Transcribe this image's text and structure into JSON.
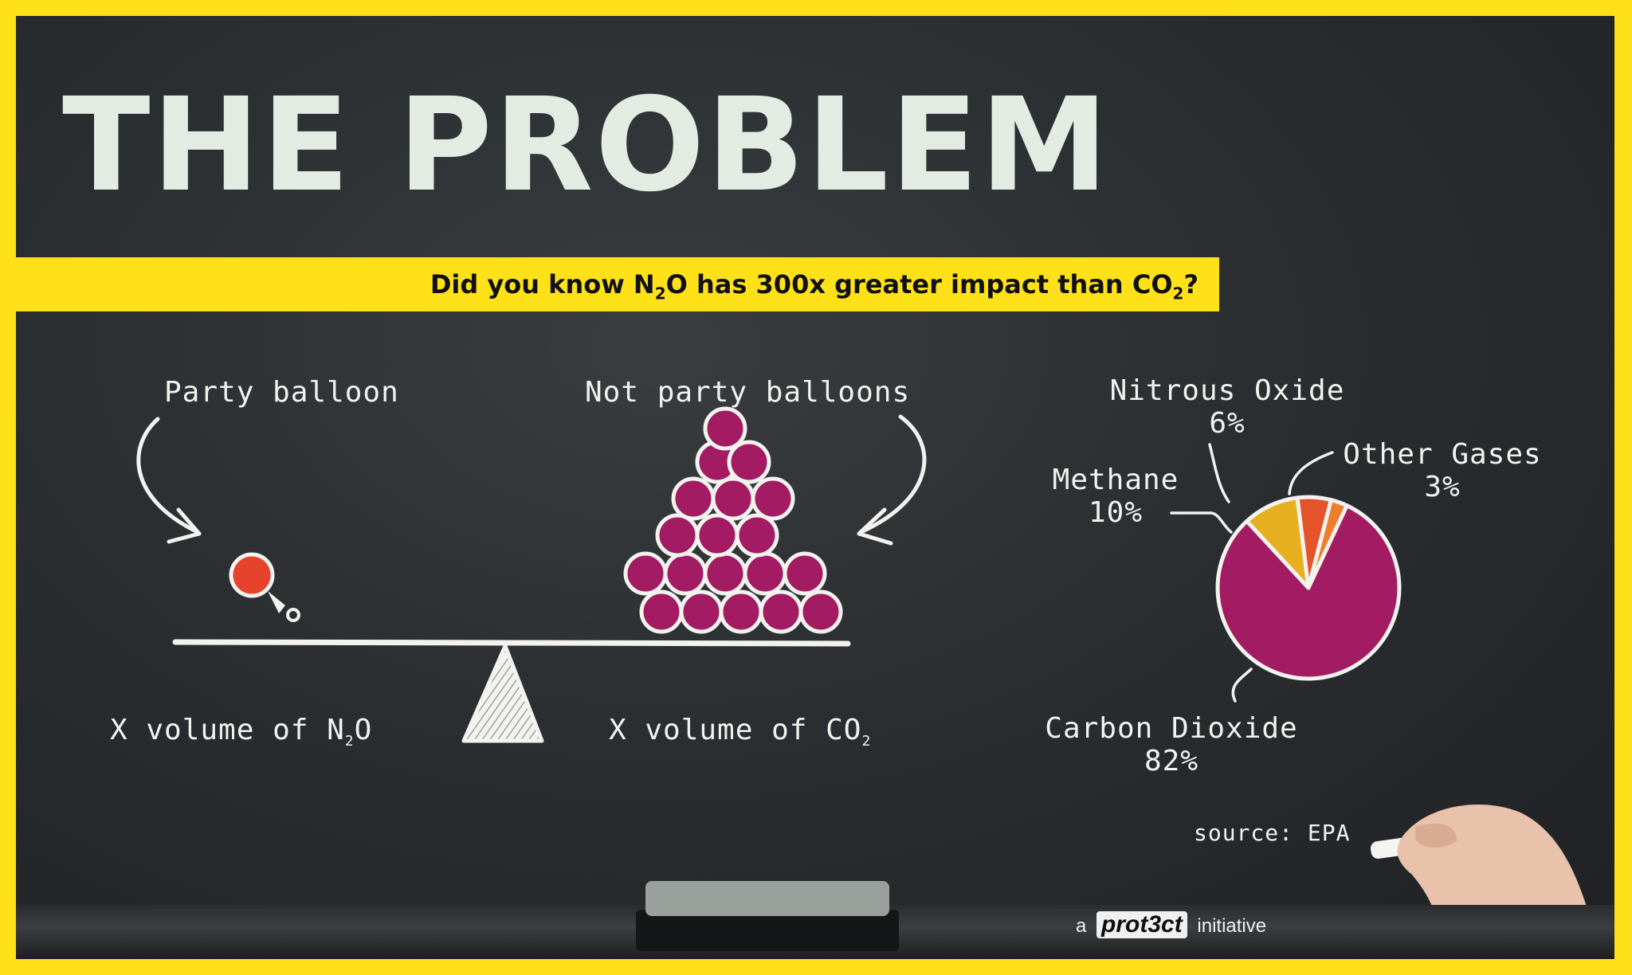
{
  "title": "THE PROBLEM",
  "banner": {
    "text_before": "Did you know N",
    "sub1": "2",
    "text_mid": "O has 300x greater impact than CO",
    "sub2": "2",
    "text_after": "?"
  },
  "balance": {
    "left_label_top": "Party balloon",
    "right_label_top": "Not party balloons",
    "left_label_bottom_prefix": "X volume of N",
    "left_label_bottom_sub": "2",
    "left_label_bottom_suffix": "O",
    "right_label_bottom_prefix": "X volume of CO",
    "right_label_bottom_sub": "2"
  },
  "pie": {
    "slices": [
      {
        "name": "Carbon Dioxide",
        "value_text": "82%",
        "value": 82,
        "color": "#a31b62"
      },
      {
        "name": "Methane",
        "value_text": "10%",
        "value": 10,
        "color": "#e7b021"
      },
      {
        "name": "Nitrous Oxide",
        "value_text": "6%",
        "value": 6,
        "color": "#e5532b"
      },
      {
        "name": "Other Gases",
        "value_text": "3%",
        "value": 3,
        "color": "#ee7d2c"
      }
    ]
  },
  "source": "source: EPA",
  "credit": {
    "prefix": "a",
    "logo": "prot3ct",
    "suffix": "initiative"
  },
  "colors": {
    "frame": "#ffe11a",
    "board": "#2b2e31",
    "chalk": "#f2f2ee",
    "balloon_red": "#e5432b",
    "balloon_purple": "#a31b62"
  }
}
